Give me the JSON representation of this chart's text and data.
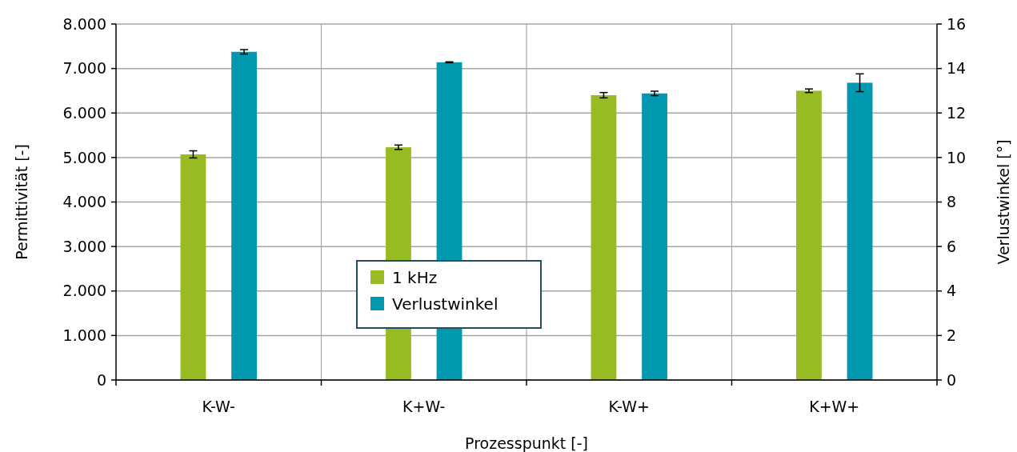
{
  "chart_data": {
    "type": "bar",
    "xlabel": "Prozesspunkt   [-]",
    "ylabel": "Permittivität   [-]",
    "y2label": "Verlustwinkel   [°]",
    "categories": [
      "K-W-",
      "K+W-",
      "K-W+",
      "K+W+"
    ],
    "series": [
      {
        "name": "1 kHz",
        "color": "#97bb22",
        "values": [
          5070,
          5230,
          6400,
          6500
        ],
        "errors": [
          80,
          50,
          60,
          40
        ]
      },
      {
        "name": "Verlustwinkel",
        "color": "#0099af",
        "axis": "y2",
        "values": [
          14.75,
          14.28,
          12.88,
          13.36
        ],
        "errors": [
          0.1,
          0.02,
          0.1,
          0.4
        ]
      }
    ],
    "ylim": [
      0,
      8000
    ],
    "yticks": [
      0,
      {
        "value": 1000,
        "label": "1.000"
      },
      {
        "value": 2000,
        "label": "2.000"
      },
      {
        "value": 3000,
        "label": "3.000"
      },
      {
        "value": 4000,
        "label": "4.000"
      },
      {
        "value": 5000,
        "label": "5.000"
      },
      {
        "value": 6000,
        "label": "6.000"
      },
      {
        "value": 7000,
        "label": "7.000"
      },
      {
        "value": 8000,
        "label": "8.000"
      }
    ],
    "y2lim": [
      0,
      16
    ],
    "y2ticks": [
      0,
      2,
      4,
      6,
      8,
      10,
      12,
      14,
      16
    ],
    "grid": true,
    "legend": "center"
  }
}
